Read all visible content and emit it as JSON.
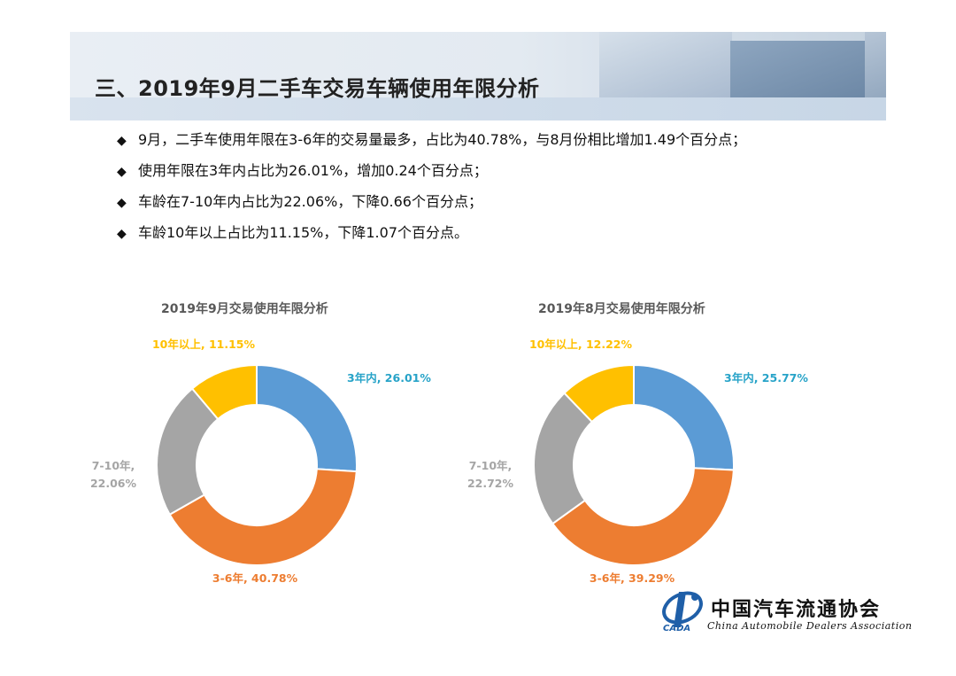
{
  "header": {
    "title": "三、2019年9月二手车交易车辆使用年限分析"
  },
  "bullets": [
    "9月，二手车使用年限在3-6年的交易量最多，占比为40.78%，与8月份相比增加1.49个百分点；",
    "使用年限在3年内占比为26.01%，增加0.24个百分点；",
    "车龄在7-10年内占比为22.06%，下降0.66个百分点；",
    "车龄10年以上占比为11.15%，下降1.07个百分点。"
  ],
  "bullet_marker": "◆",
  "chart_data": [
    {
      "type": "pie",
      "title": "2019年9月交易使用年限分析",
      "categories": [
        "3年内",
        "3-6年",
        "7-10年",
        "10年以上"
      ],
      "values": [
        26.01,
        40.78,
        22.06,
        11.15
      ],
      "labels": [
        "3年内, 26.01%",
        "3-6年, 40.78%",
        "7-10年,",
        "10年以上, 11.15%"
      ],
      "label_line2": [
        "",
        "",
        "22.06%",
        ""
      ],
      "colors": [
        "#5b9bd5",
        "#ed7d31",
        "#a5a5a5",
        "#ffc000"
      ],
      "label_colors": [
        "#27a3c8",
        "#ed7d31",
        "#a5a5a5",
        "#ffc000"
      ],
      "donut": true
    },
    {
      "type": "pie",
      "title": "2019年8月交易使用年限分析",
      "categories": [
        "3年内",
        "3-6年",
        "7-10年",
        "10年以上"
      ],
      "values": [
        25.77,
        39.29,
        22.72,
        12.22
      ],
      "labels": [
        "3年内, 25.77%",
        "3-6年, 39.29%",
        "7-10年,",
        "10年以上, 12.22%"
      ],
      "label_line2": [
        "",
        "",
        "22.72%",
        ""
      ],
      "colors": [
        "#5b9bd5",
        "#ed7d31",
        "#a5a5a5",
        "#ffc000"
      ],
      "label_colors": [
        "#27a3c8",
        "#ed7d31",
        "#a5a5a5",
        "#ffc000"
      ],
      "donut": true
    }
  ],
  "logo": {
    "name_cn": "中国汽车流通协会",
    "name_en": "China Automobile Dealers Association",
    "abbr": "CADA"
  }
}
